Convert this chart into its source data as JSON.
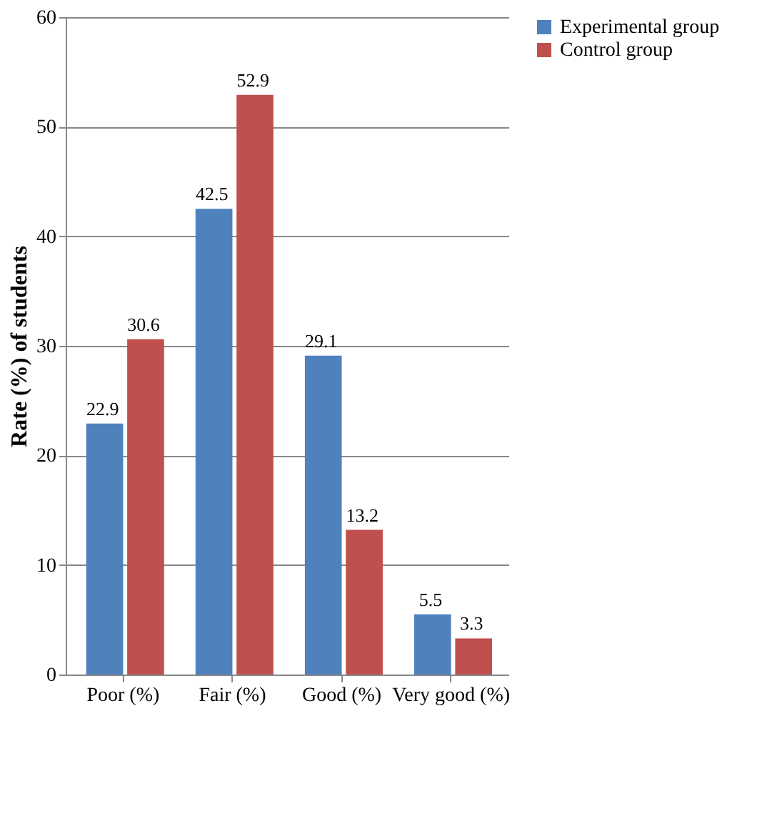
{
  "chart_data": {
    "type": "bar",
    "ylabel": "Rate (%) of students",
    "categories": [
      "Poor (%)",
      "Fair (%)",
      "Good (%)",
      "Very good (%)"
    ],
    "series": [
      {
        "name": "Experimental group",
        "color": "#4f81bd",
        "values": [
          22.9,
          42.5,
          29.1,
          5.5
        ]
      },
      {
        "name": "Control group",
        "color": "#c0504d",
        "values": [
          30.6,
          52.9,
          13.2,
          3.3
        ]
      }
    ],
    "ylim": [
      0,
      60
    ],
    "yticks": [
      0,
      10,
      20,
      30,
      40,
      50,
      60
    ],
    "grid": "y",
    "legend": "right",
    "data_labels": true
  }
}
